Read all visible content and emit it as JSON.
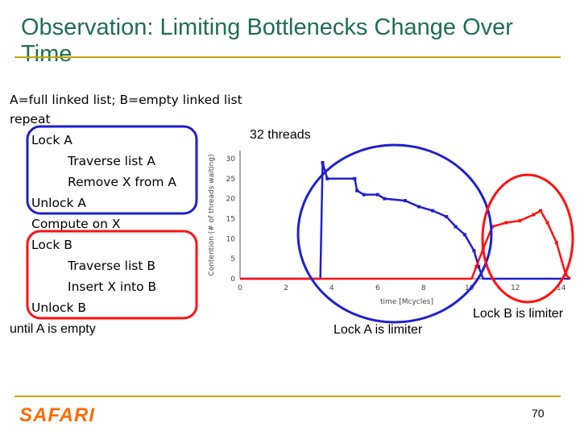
{
  "slide": {
    "title": "Observation: Limiting Bottlenecks Change Over Time",
    "definition_line": "A=full linked list; B=empty linked list",
    "code": {
      "repeat": "repeat",
      "lock_a": "Lock A",
      "traverse_a": "Traverse list A",
      "remove_x": "Remove X from A",
      "unlock_a": "Unlock A",
      "compute": "Compute on X",
      "lock_b": "Lock B",
      "traverse_b": "Traverse list B",
      "insert_x": "Insert X into B",
      "unlock_b": "Unlock B",
      "until": "until A is empty"
    },
    "threads_label": "32 threads",
    "lock_a_limiter": "Lock A is limiter",
    "lock_b_limiter": "Lock B is limiter",
    "logo_text": "SAFARI",
    "page_number": "70"
  },
  "colors": {
    "title": "#1f6e52",
    "rule": "#c8a400",
    "lock_a": "#1f1fcf",
    "lock_b": "#ff1010",
    "logo": "#ff6a00"
  },
  "chart_data": {
    "type": "line",
    "xlabel": "time [Mcycles]",
    "ylabel": "Contention (# of threads waiting)",
    "xlim": [
      0,
      14.4
    ],
    "ylim": [
      0,
      32
    ],
    "x_ticks": [
      0,
      2,
      4,
      6,
      8,
      10,
      12,
      14
    ],
    "y_ticks": [
      0,
      5,
      10,
      15,
      20,
      25,
      30
    ],
    "grid": false,
    "legend": "none",
    "series": [
      {
        "color": "#1f1fcf",
        "points": [
          [
            0,
            0
          ],
          [
            3.5,
            0
          ],
          [
            3.6,
            29
          ],
          [
            3.8,
            25
          ],
          [
            5.0,
            25
          ],
          [
            5.1,
            22
          ],
          [
            5.4,
            21
          ],
          [
            6.0,
            21
          ],
          [
            6.3,
            20
          ],
          [
            7.2,
            19.5
          ],
          [
            7.8,
            18
          ],
          [
            8.4,
            17
          ],
          [
            9.0,
            15.5
          ],
          [
            9.4,
            13
          ],
          [
            9.8,
            11
          ],
          [
            10.2,
            7
          ],
          [
            10.4,
            3
          ],
          [
            10.6,
            0
          ],
          [
            14.4,
            0
          ]
        ]
      },
      {
        "color": "#ff1010",
        "points": [
          [
            0,
            0
          ],
          [
            10.1,
            0
          ],
          [
            10.3,
            3
          ],
          [
            10.6,
            7.5
          ],
          [
            11.0,
            13
          ],
          [
            11.6,
            14
          ],
          [
            12.2,
            14.5
          ],
          [
            12.8,
            16
          ],
          [
            13.1,
            17
          ],
          [
            13.4,
            14
          ],
          [
            13.8,
            9
          ],
          [
            14.2,
            1
          ],
          [
            14.4,
            0
          ]
        ]
      }
    ]
  }
}
